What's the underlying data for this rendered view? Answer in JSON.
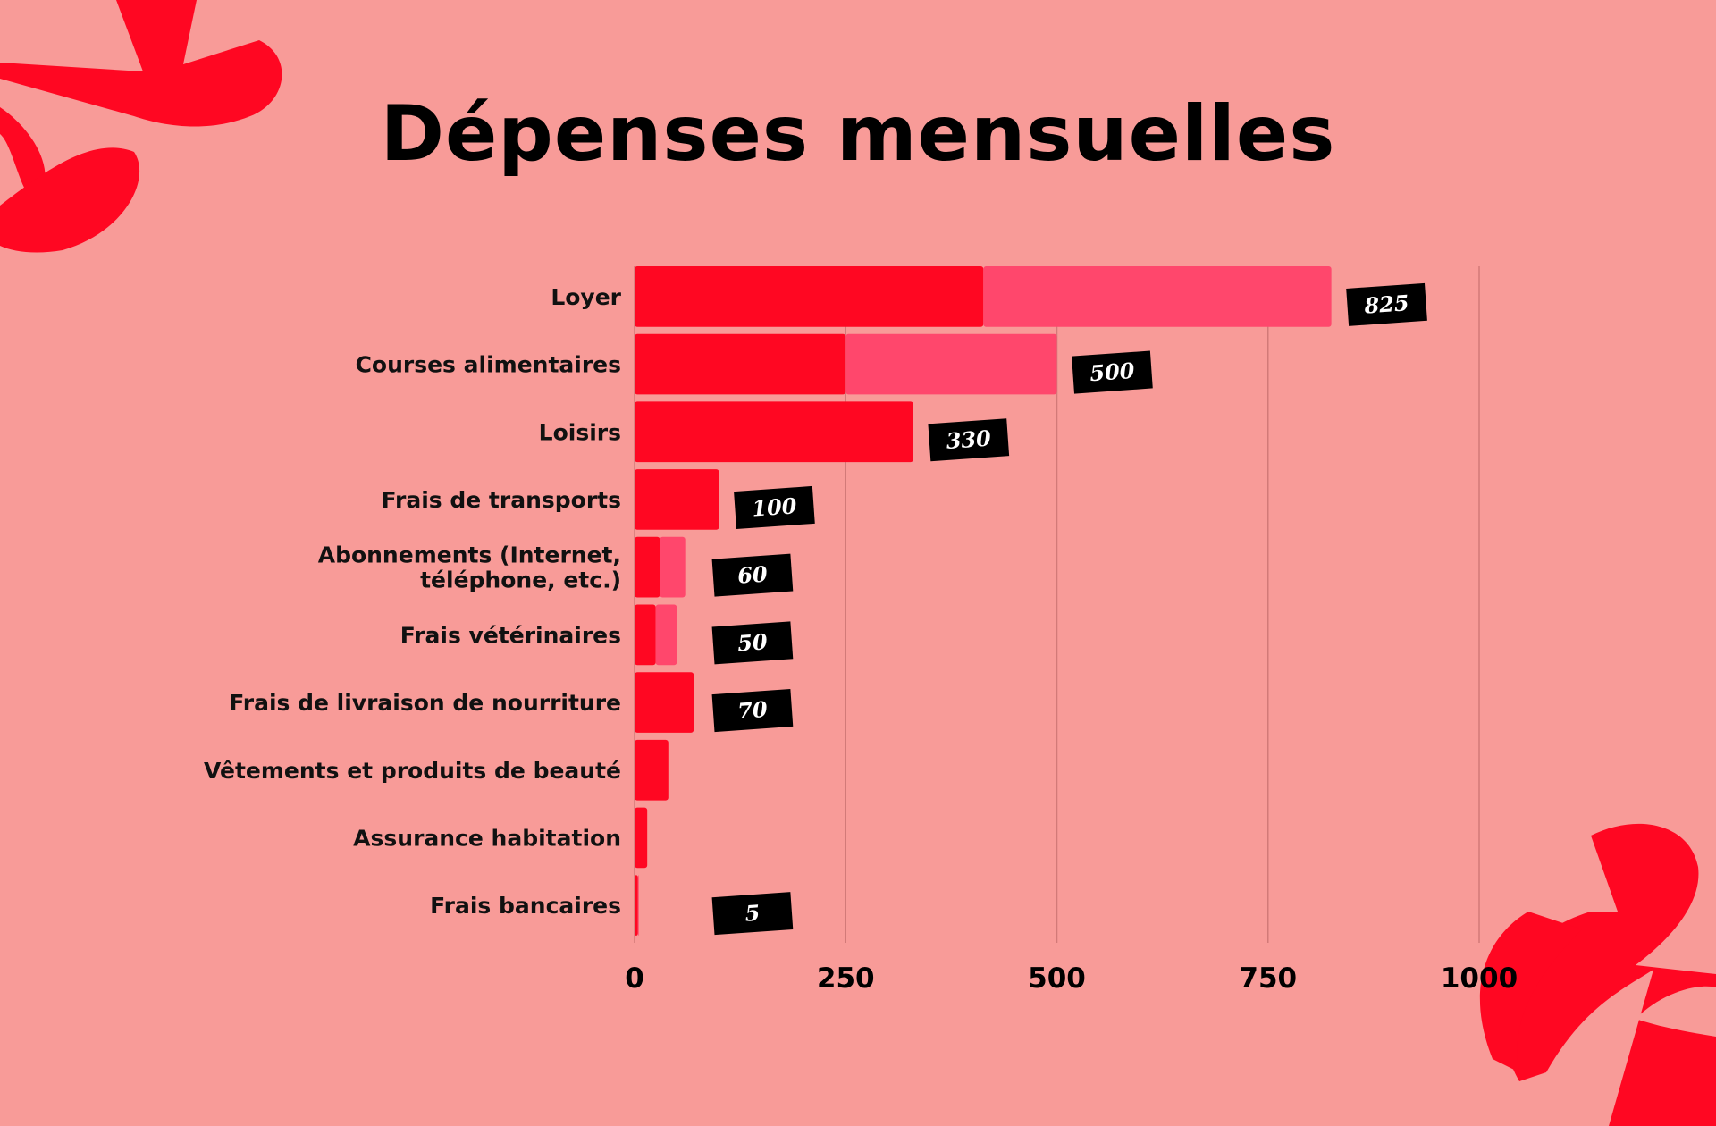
{
  "colors": {
    "background": "#f89b98",
    "bar_primary": "#ff0722",
    "bar_secondary": "#ff476c",
    "label_box": "#000000",
    "decoration": "#ff0722"
  },
  "chart_data": {
    "type": "bar",
    "orientation": "horizontal",
    "stacked": true,
    "title": "Dépenses mensuelles",
    "xlabel": "",
    "ylabel": "",
    "xlim": [
      0,
      1000
    ],
    "xticks": [
      0,
      250,
      500,
      750,
      1000
    ],
    "grid": true,
    "categories": [
      [
        "Loyer"
      ],
      [
        "Courses alimentaires"
      ],
      [
        "Loisirs"
      ],
      [
        "Frais de transports"
      ],
      [
        "Abonnements (Internet,",
        "téléphone, etc.)"
      ],
      [
        "Frais vétérinaires"
      ],
      [
        "Frais de livraison de nourriture"
      ],
      [
        "Vêtements et produits de beauté"
      ],
      [
        "Assurance habitation"
      ],
      [
        "Frais bancaires"
      ]
    ],
    "series": [
      {
        "values": [
          413,
          250,
          330,
          100,
          30,
          25,
          70,
          40,
          15,
          4
        ]
      },
      {
        "values": [
          412,
          250,
          0,
          0,
          30,
          25,
          0,
          0,
          0,
          1
        ]
      }
    ],
    "totals": [
      825,
      500,
      330,
      100,
      60,
      50,
      70,
      40,
      15,
      5
    ],
    "data_labels": [
      "825",
      "500",
      "330",
      "100",
      "60",
      "50",
      "70",
      "",
      "",
      "5"
    ]
  }
}
